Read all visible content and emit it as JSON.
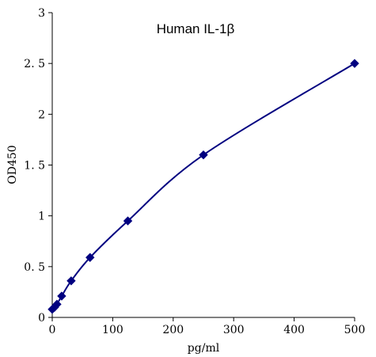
{
  "chart_data": {
    "type": "line",
    "title": "Human IL-1β",
    "xlabel": "pg/ml",
    "ylabel": "OD450",
    "xlim": [
      0,
      500
    ],
    "ylim": [
      0,
      3
    ],
    "x_ticks": [
      "0",
      "100",
      "200",
      "300",
      "400",
      "500"
    ],
    "y_ticks": [
      "0",
      "0. 5",
      "1",
      "1. 5",
      "2",
      "2. 5",
      "3"
    ],
    "grid": false,
    "legend": "none",
    "series": [
      {
        "marker": "diamond",
        "color": "#000080",
        "points": [
          {
            "x": 0,
            "y": 0.08
          },
          {
            "x": 3.9,
            "y": 0.1
          },
          {
            "x": 7.8,
            "y": 0.13
          },
          {
            "x": 15.6,
            "y": 0.21
          },
          {
            "x": 31.3,
            "y": 0.36
          },
          {
            "x": 62.5,
            "y": 0.59
          },
          {
            "x": 125,
            "y": 0.95
          },
          {
            "x": 250,
            "y": 1.6
          },
          {
            "x": 500,
            "y": 2.5
          }
        ]
      }
    ]
  }
}
